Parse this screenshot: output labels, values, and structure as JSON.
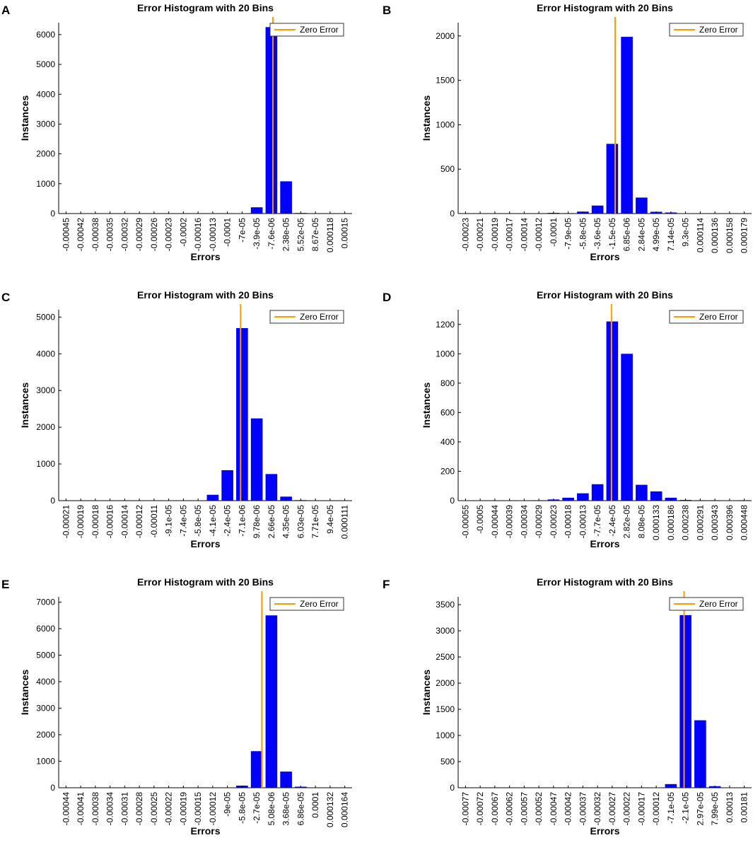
{
  "figure": {
    "colors": {
      "bar": "#0000ff",
      "zero_line": "#ff9a00",
      "axis": "#000000"
    },
    "icons": {
      "legend": "orange-line-swatch"
    }
  },
  "chart_data": [
    {
      "panel": "A",
      "type": "bar",
      "title": "Error Histogram with 20 Bins",
      "xlabel": "Errors",
      "ylabel": "Instances",
      "legend": "Zero Error",
      "legend_position": "top-right",
      "categories": [
        "-0.00045",
        "-0.00042",
        "-0.00038",
        "-0.00035",
        "-0.00032",
        "-0.00029",
        "-0.00026",
        "-0.00023",
        "-0.0002",
        "-0.00016",
        "-0.00013",
        "-0.0001",
        "-7e-05",
        "-3.9e-05",
        "-7.6e-06",
        "2.38e-05",
        "5.52e-05",
        "8.67e-05",
        "0.000118",
        "0.00015"
      ],
      "values": [
        0,
        0,
        0,
        0,
        0,
        0,
        0,
        0,
        0,
        0,
        0,
        0,
        10,
        210,
        6250,
        1080,
        20,
        0,
        0,
        0
      ],
      "ylim": [
        0,
        6400
      ],
      "yticks": [
        0,
        1000,
        2000,
        3000,
        4000,
        5000,
        6000
      ],
      "zero_error_bin": 14.6
    },
    {
      "panel": "B",
      "type": "bar",
      "title": "Error Histogram with 20 Bins",
      "xlabel": "Errors",
      "ylabel": "Instances",
      "legend": "Zero Error",
      "legend_position": "top-right",
      "categories": [
        "-0.00023",
        "-0.00021",
        "-0.00019",
        "-0.00017",
        "-0.00014",
        "-0.00012",
        "-0.0001",
        "-7.9e-05",
        "-5.8e-05",
        "-3.6e-05",
        "-1.5e-05",
        "6.85e-06",
        "2.84e-05",
        "4.99e-05",
        "7.14e-05",
        "9.3e-05",
        "0.000114",
        "0.000136",
        "0.000158",
        "0.000179"
      ],
      "values": [
        0,
        0,
        0,
        0,
        0,
        0,
        8,
        5,
        22,
        90,
        785,
        1990,
        180,
        20,
        12,
        3,
        2,
        0,
        0,
        2
      ],
      "ylim": [
        0,
        2150
      ],
      "yticks": [
        0,
        500,
        1000,
        1500,
        2000
      ],
      "zero_error_bin": 10.7
    },
    {
      "panel": "C",
      "type": "bar",
      "title": "Error Histogram with 20 Bins",
      "xlabel": "Errors",
      "ylabel": "Instances",
      "legend": "Zero Error",
      "legend_position": "top-right",
      "categories": [
        "-0.00021",
        "-0.00019",
        "-0.00018",
        "-0.00016",
        "-0.00014",
        "-0.00012",
        "-0.00011",
        "-9.1e-05",
        "-7.4e-05",
        "-5.8e-05",
        "-4.1e-05",
        "-2.4e-05",
        "-7.1e-06",
        "9.78e-06",
        "2.66e-05",
        "4.35e-05",
        "6.03e-05",
        "7.71e-05",
        "9.4e-05",
        "0.000111"
      ],
      "values": [
        0,
        0,
        0,
        0,
        0,
        0,
        5,
        5,
        5,
        10,
        160,
        830,
        4700,
        2240,
        725,
        110,
        15,
        5,
        3,
        5
      ],
      "ylim": [
        0,
        5200
      ],
      "yticks": [
        0,
        1000,
        2000,
        3000,
        4000,
        5000
      ],
      "zero_error_bin": 12.4
    },
    {
      "panel": "D",
      "type": "bar",
      "title": "Error Histogram with 20 Bins",
      "xlabel": "Errors",
      "ylabel": "Instances",
      "legend": "Zero Error",
      "legend_position": "top-right",
      "categories": [
        "-0.00055",
        "-0.0005",
        "-0.00044",
        "-0.00039",
        "-0.00034",
        "-0.00029",
        "-0.00023",
        "-0.00018",
        "-0.00013",
        "-7.7e-05",
        "-2.4e-05",
        "2.82e-05",
        "8.08e-05",
        "0.000133",
        "0.000186",
        "0.000238",
        "0.000291",
        "0.000343",
        "0.000396",
        "0.000448"
      ],
      "values": [
        2,
        1,
        1,
        1,
        2,
        3,
        8,
        20,
        50,
        112,
        1220,
        1000,
        108,
        63,
        20,
        5,
        3,
        3,
        2,
        3
      ],
      "ylim": [
        0,
        1300
      ],
      "yticks": [
        0,
        200,
        400,
        600,
        800,
        1000,
        1200
      ],
      "zero_error_bin": 10.45
    },
    {
      "panel": "E",
      "type": "bar",
      "title": "Error Histogram with 20 Bins",
      "xlabel": "Errors",
      "ylabel": "Instances",
      "legend": "Zero Error",
      "legend_position": "top-right",
      "categories": [
        "-0.00044",
        "-0.00041",
        "-0.00038",
        "-0.00034",
        "-0.00031",
        "-0.00028",
        "-0.00025",
        "-0.00022",
        "-0.00019",
        "-0.00015",
        "-0.00012",
        "-9e-05",
        "-5.8e-05",
        "-2.7e-05",
        "5.08e-06",
        "3.68e-05",
        "6.86e-05",
        "0.0001",
        "0.000132",
        "0.000164"
      ],
      "values": [
        0,
        0,
        0,
        0,
        0,
        0,
        0,
        0,
        0,
        0,
        0,
        5,
        80,
        1380,
        6500,
        610,
        40,
        5,
        0,
        0
      ],
      "ylim": [
        0,
        7200
      ],
      "yticks": [
        0,
        1000,
        2000,
        3000,
        4000,
        5000,
        6000,
        7000
      ],
      "zero_error_bin": 13.85
    },
    {
      "panel": "F",
      "type": "bar",
      "title": "Error Histogram with 20 Bins",
      "xlabel": "Errors",
      "ylabel": "Instances",
      "legend": "Zero Error",
      "legend_position": "top-right",
      "categories": [
        "-0.00077",
        "-0.00072",
        "-0.00067",
        "-0.00062",
        "-0.00057",
        "-0.00052",
        "-0.00047",
        "-0.00042",
        "-0.00037",
        "-0.00032",
        "-0.00027",
        "-0.00022",
        "-0.00017",
        "-0.00012",
        "-7.1e-05",
        "-2.1e-05",
        "2.97e-05",
        "7.99e-05",
        "0.00013",
        "0.00181"
      ],
      "values": [
        0,
        0,
        0,
        0,
        0,
        0,
        0,
        0,
        0,
        0,
        0,
        0,
        0,
        5,
        70,
        3300,
        1290,
        30,
        5,
        0
      ],
      "ylim": [
        0,
        3650
      ],
      "yticks": [
        0,
        500,
        1000,
        1500,
        2000,
        2500,
        3000,
        3500
      ],
      "zero_error_bin": 15.4
    }
  ]
}
